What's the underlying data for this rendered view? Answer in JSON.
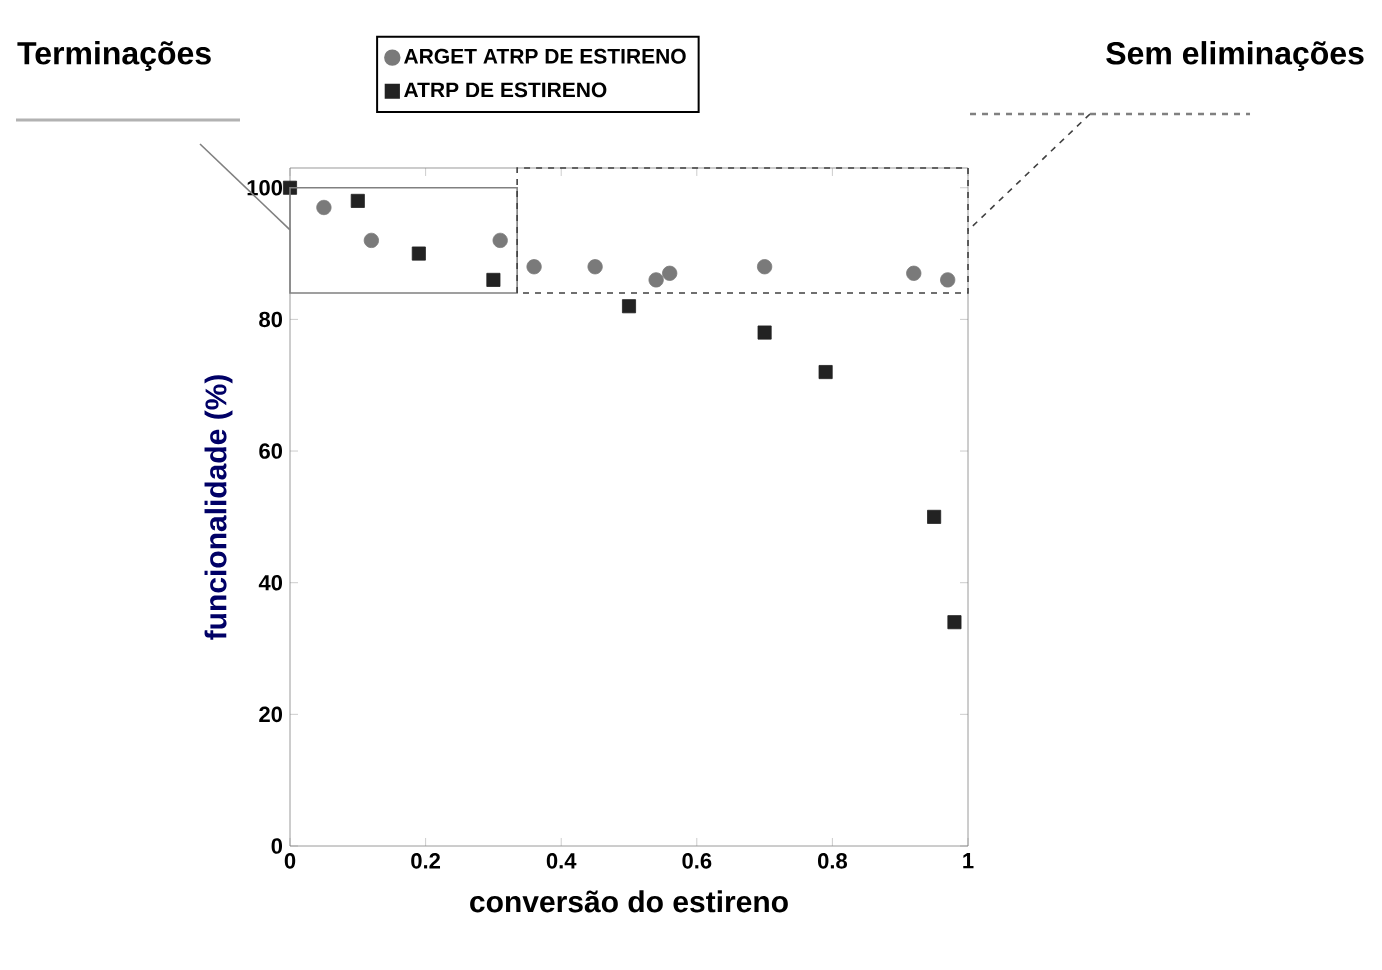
{
  "chart_data": {
    "type": "scatter",
    "xlabel": "conversão do estireno",
    "ylabel": "funcionalidade (%)",
    "annotations": [
      "Terminações",
      "Sem eliminações"
    ],
    "xlim": [
      0,
      1
    ],
    "ylim": [
      0,
      103
    ],
    "xticks": [
      0,
      0.2,
      0.4,
      0.6,
      0.8,
      1
    ],
    "yticks": [
      0,
      20,
      40,
      60,
      80,
      100
    ],
    "legend": "top",
    "grid": false,
    "series": [
      {
        "name": "ARGET ATRP DE ESTIRENO",
        "color": "#7a7a7a",
        "marker": "circle",
        "x": [
          0.05,
          0.12,
          0.31,
          0.36,
          0.45,
          0.54,
          0.56,
          0.7,
          0.92,
          0.97
        ],
        "values": [
          97,
          92,
          92,
          88,
          88,
          86,
          87,
          88,
          87,
          86
        ]
      },
      {
        "name": "ATRP DE ESTIRENO",
        "color": "#222222",
        "marker": "square",
        "x": [
          0,
          0.1,
          0.19,
          0.3,
          0.5,
          0.7,
          0.79,
          0.95,
          0.98
        ],
        "values": [
          100,
          98,
          90,
          86,
          82,
          78,
          72,
          50,
          34
        ]
      }
    ]
  }
}
